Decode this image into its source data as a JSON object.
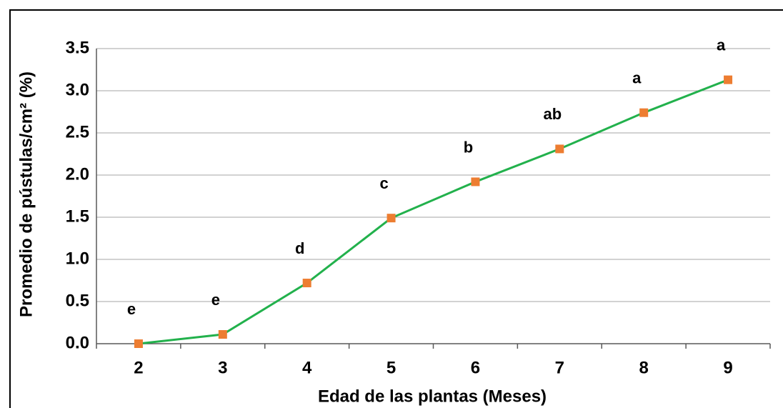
{
  "chart_data": {
    "type": "line",
    "x_label": "Edad de las plantas (Meses)",
    "y_label": "Promedio de pústulas/cm² (%)",
    "categories": [
      "2",
      "3",
      "4",
      "5",
      "6",
      "7",
      "8",
      "9"
    ],
    "series": [
      {
        "color": "#22b14c",
        "marker_color": "#ed7d31",
        "values": [
          0.0,
          0.11,
          0.72,
          1.49,
          1.92,
          2.31,
          2.74,
          3.13
        ]
      }
    ],
    "annotations": [
      "e",
      "e",
      "d",
      "c",
      "b",
      "ab",
      "a",
      "a"
    ],
    "ylim": [
      0,
      3.5
    ],
    "yticks": [
      {
        "value": 0,
        "label": "0.0"
      },
      0.5,
      {
        "value": 1,
        "label": "1.0"
      },
      1.5,
      {
        "value": 2,
        "label": "2.0"
      },
      2.5,
      {
        "value": 3,
        "label": "3.0"
      },
      3.5
    ],
    "grid": true
  }
}
